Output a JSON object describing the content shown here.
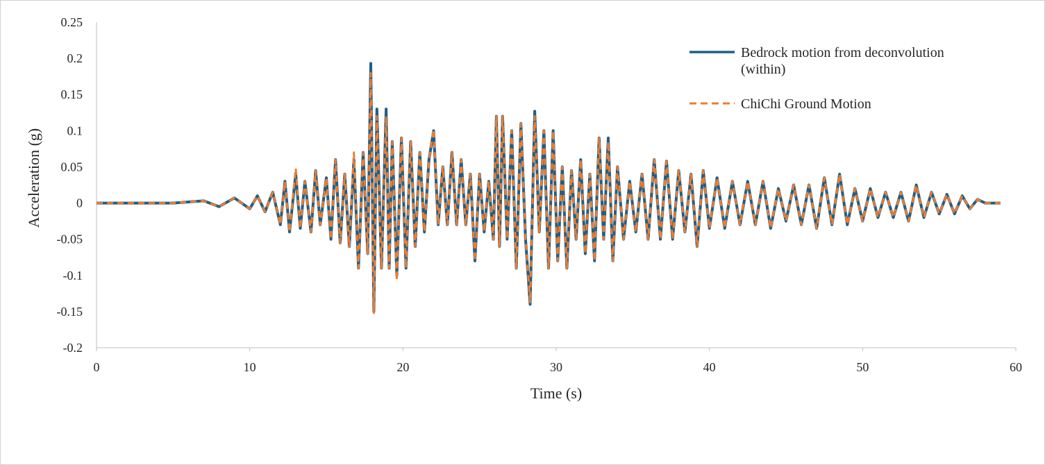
{
  "chart_data": {
    "type": "line",
    "xlabel": "Time (s)",
    "ylabel": "Acceleration (g)",
    "xlim": [
      0,
      60
    ],
    "ylim": [
      -0.2,
      0.25
    ],
    "x_ticks": [
      "0",
      "10",
      "20",
      "30",
      "40",
      "50",
      "60"
    ],
    "y_ticks": [
      "0.25",
      "0.2",
      "0.15",
      "0.1",
      "0.05",
      "0",
      "-0.05",
      "-0.1",
      "-0.15",
      "-0.2"
    ],
    "grid": false,
    "legend_position": "top-right",
    "legend": [
      {
        "label_lines": [
          "Bedrock motion from deconvolution",
          "(within)"
        ],
        "color": "#1f5f86",
        "style": "solid"
      },
      {
        "label_lines": [
          "ChiChi Ground Motion"
        ],
        "color": "#ed7d31",
        "style": "dashed"
      }
    ],
    "series": [
      {
        "name": "Bedrock motion from deconvolution (within)",
        "color": "#1f5f86",
        "style": "solid",
        "x": [
          0,
          5,
          7,
          8,
          9,
          10,
          10.5,
          11,
          11.5,
          12,
          12.3,
          12.6,
          13,
          13.3,
          13.6,
          14,
          14.3,
          14.6,
          15,
          15.3,
          15.6,
          15.9,
          16.2,
          16.5,
          16.8,
          17.1,
          17.4,
          17.7,
          17.9,
          18.1,
          18.3,
          18.6,
          18.9,
          19.1,
          19.3,
          19.6,
          19.9,
          20.2,
          20.5,
          20.8,
          21.1,
          21.4,
          21.7,
          22.0,
          22.3,
          22.6,
          22.9,
          23.2,
          23.5,
          23.8,
          24.1,
          24.4,
          24.7,
          25.0,
          25.3,
          25.6,
          25.9,
          26.1,
          26.3,
          26.5,
          26.8,
          27.1,
          27.4,
          27.7,
          28.0,
          28.3,
          28.6,
          28.9,
          29.2,
          29.5,
          29.8,
          30.1,
          30.4,
          30.7,
          31.0,
          31.3,
          31.6,
          31.9,
          32.2,
          32.5,
          32.8,
          33.1,
          33.4,
          33.7,
          34.0,
          34.4,
          34.8,
          35.2,
          35.6,
          36.0,
          36.4,
          36.8,
          37.2,
          37.6,
          38.0,
          38.4,
          38.8,
          39.2,
          39.6,
          40.0,
          40.5,
          41.0,
          41.5,
          42.0,
          42.5,
          43.0,
          43.5,
          44.0,
          44.5,
          45.0,
          45.5,
          46.0,
          46.5,
          47.0,
          47.5,
          48.0,
          48.5,
          49.0,
          49.5,
          50.0,
          50.5,
          51.0,
          51.5,
          52.0,
          52.5,
          53.0,
          53.5,
          54.0,
          54.5,
          55.0,
          55.5,
          56.0,
          56.5,
          57.0,
          57.5,
          58.0,
          59.0
        ],
        "y": [
          0,
          0,
          0.003,
          -0.005,
          0.007,
          -0.008,
          0.01,
          -0.012,
          0.015,
          -0.03,
          0.03,
          -0.04,
          0.04,
          -0.035,
          0.03,
          -0.04,
          0.045,
          -0.03,
          0.035,
          -0.05,
          0.06,
          -0.055,
          0.04,
          -0.06,
          0.06,
          -0.09,
          0.07,
          -0.07,
          0.193,
          -0.15,
          0.13,
          -0.09,
          0.13,
          -0.09,
          0.085,
          -0.1,
          0.09,
          -0.09,
          0.085,
          -0.06,
          0.07,
          -0.04,
          0.06,
          0.1,
          -0.03,
          0.05,
          -0.03,
          0.07,
          -0.03,
          0.06,
          -0.03,
          0.04,
          -0.08,
          0.04,
          -0.04,
          0.03,
          -0.05,
          0.12,
          -0.06,
          0.12,
          -0.05,
          0.1,
          -0.09,
          0.11,
          -0.05,
          -0.14,
          0.127,
          -0.04,
          0.1,
          -0.09,
          0.1,
          -0.08,
          0.05,
          -0.09,
          0.045,
          -0.05,
          0.06,
          -0.07,
          0.04,
          -0.08,
          0.09,
          -0.05,
          0.09,
          -0.08,
          0.05,
          -0.05,
          0.03,
          -0.04,
          0.04,
          -0.05,
          0.06,
          -0.05,
          0.058,
          -0.05,
          0.045,
          -0.04,
          0.04,
          -0.06,
          0.045,
          -0.035,
          0.035,
          -0.035,
          0.03,
          -0.03,
          0.03,
          -0.03,
          0.03,
          -0.035,
          0.02,
          -0.025,
          0.025,
          -0.03,
          0.025,
          -0.035,
          0.035,
          -0.03,
          0.04,
          -0.03,
          0.02,
          -0.025,
          0.02,
          -0.02,
          0.015,
          -0.02,
          0.015,
          -0.025,
          0.025,
          -0.02,
          0.015,
          -0.015,
          0.012,
          -0.015,
          0.01,
          -0.008,
          0.005,
          0,
          0
        ]
      },
      {
        "name": "ChiChi Ground Motion",
        "color": "#ed7d31",
        "style": "dashed",
        "x": [
          0,
          5,
          7,
          8,
          9,
          10,
          10.5,
          11,
          11.5,
          12,
          12.3,
          12.6,
          13,
          13.3,
          13.6,
          14,
          14.3,
          14.6,
          15,
          15.3,
          15.6,
          15.9,
          16.2,
          16.5,
          16.8,
          17.1,
          17.4,
          17.7,
          17.9,
          18.1,
          18.3,
          18.6,
          18.9,
          19.1,
          19.3,
          19.6,
          19.9,
          20.2,
          20.5,
          20.8,
          21.1,
          21.4,
          21.7,
          22.0,
          22.3,
          22.6,
          22.9,
          23.2,
          23.5,
          23.8,
          24.1,
          24.4,
          24.7,
          25.0,
          25.3,
          25.6,
          25.9,
          26.1,
          26.3,
          26.5,
          26.8,
          27.1,
          27.4,
          27.7,
          28.0,
          28.3,
          28.6,
          28.9,
          29.2,
          29.5,
          29.8,
          30.1,
          30.4,
          30.7,
          31.0,
          31.3,
          31.6,
          31.9,
          32.2,
          32.5,
          32.8,
          33.1,
          33.4,
          33.7,
          34.0,
          34.4,
          34.8,
          35.2,
          35.6,
          36.0,
          36.4,
          36.8,
          37.2,
          37.6,
          38.0,
          38.4,
          38.8,
          39.2,
          39.6,
          40.0,
          40.5,
          41.0,
          41.5,
          42.0,
          42.5,
          43.0,
          43.5,
          44.0,
          44.5,
          45.0,
          45.5,
          46.0,
          46.5,
          47.0,
          47.5,
          48.0,
          48.5,
          49.0,
          49.5,
          50.0,
          50.5,
          51.0,
          51.5,
          52.0,
          52.5,
          53.0,
          53.5,
          54.0,
          54.5,
          55.0,
          55.5,
          56.0,
          56.5,
          57.0,
          57.5,
          58.0,
          59.0
        ],
        "y": [
          0,
          0,
          0.003,
          -0.005,
          0.007,
          -0.008,
          0.01,
          -0.012,
          0.015,
          -0.03,
          0.03,
          -0.04,
          0.048,
          -0.035,
          0.03,
          -0.04,
          0.045,
          -0.03,
          0.035,
          -0.05,
          0.06,
          -0.055,
          0.04,
          -0.06,
          0.07,
          -0.09,
          0.07,
          -0.07,
          0.18,
          -0.152,
          0.12,
          -0.09,
          0.12,
          -0.09,
          0.085,
          -0.107,
          0.09,
          -0.09,
          0.085,
          -0.06,
          0.07,
          -0.04,
          0.06,
          0.102,
          -0.03,
          0.05,
          -0.03,
          0.07,
          -0.03,
          0.06,
          -0.03,
          0.04,
          -0.08,
          0.04,
          -0.04,
          0.03,
          -0.05,
          0.12,
          -0.06,
          0.12,
          -0.05,
          0.1,
          -0.09,
          0.11,
          -0.05,
          -0.137,
          0.12,
          -0.04,
          0.1,
          -0.09,
          0.1,
          -0.08,
          0.05,
          -0.09,
          0.045,
          -0.05,
          0.06,
          -0.07,
          0.04,
          -0.08,
          0.09,
          -0.05,
          0.085,
          -0.08,
          0.05,
          -0.05,
          0.03,
          -0.04,
          0.04,
          -0.05,
          0.06,
          -0.05,
          0.058,
          -0.05,
          0.045,
          -0.04,
          0.04,
          -0.06,
          0.045,
          -0.035,
          0.035,
          -0.035,
          0.03,
          -0.03,
          0.03,
          -0.03,
          0.03,
          -0.035,
          0.02,
          -0.025,
          0.025,
          -0.03,
          0.025,
          -0.035,
          0.035,
          -0.03,
          0.04,
          -0.03,
          0.02,
          -0.025,
          0.02,
          -0.02,
          0.015,
          -0.02,
          0.015,
          -0.025,
          0.025,
          -0.02,
          0.015,
          -0.015,
          0.012,
          -0.015,
          0.01,
          -0.008,
          0.005,
          0,
          0
        ]
      }
    ]
  }
}
